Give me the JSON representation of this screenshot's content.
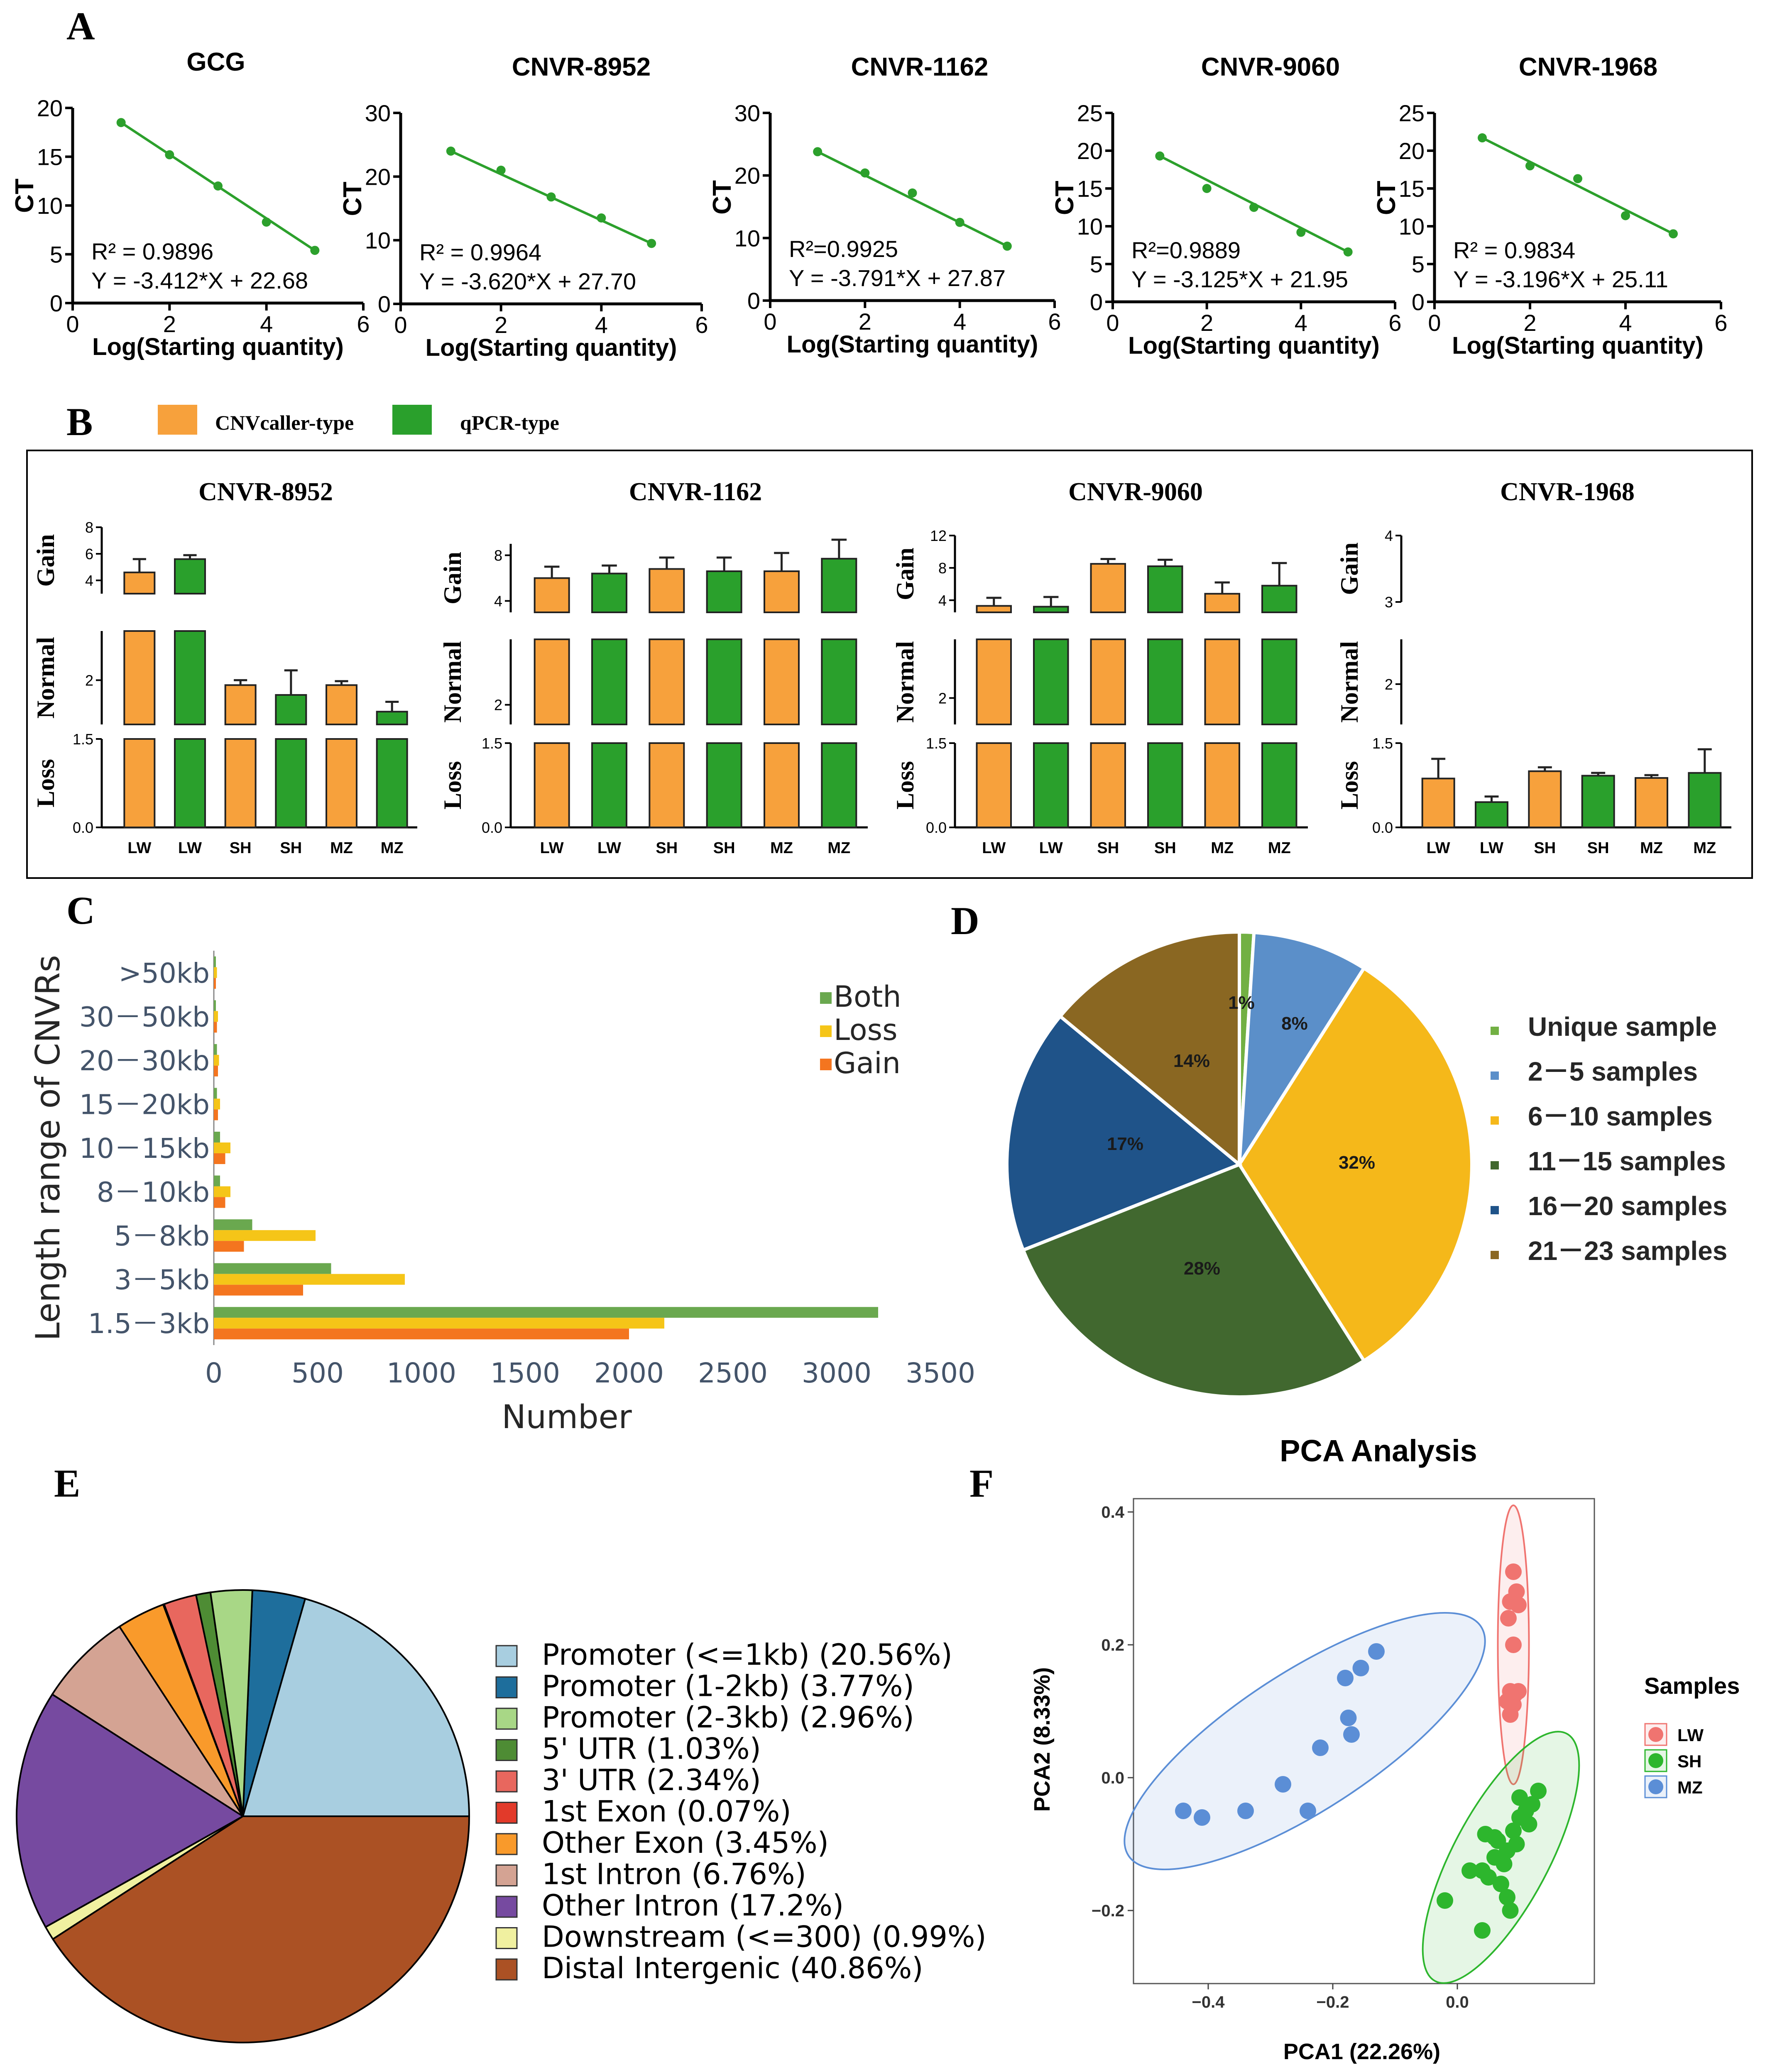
{
  "panel_letters": {
    "A": "A",
    "B": "B",
    "C": "C",
    "D": "D",
    "E": "E",
    "F": "F"
  },
  "colors": {
    "std_line": "#2ca02c",
    "caller": "#f7a13c",
    "qpcr": "#2aa02c",
    "c_both": "#6aa84f",
    "c_loss": "#f5c518",
    "c_gain": "#f4751f",
    "pca_lw": "#f07470",
    "pca_sh": "#2db62d",
    "pca_mz": "#5b8ed6"
  },
  "chart_data": [
    {
      "id": "A",
      "type": "scatter",
      "xlabel": "Log(Starting quantity)",
      "ylabel": "CT",
      "plots": [
        {
          "title": "GCG",
          "ylim": [
            0,
            20
          ],
          "yticks": [
            0,
            5,
            10,
            15,
            20
          ],
          "xlim": [
            0,
            6
          ],
          "xticks": [
            0,
            2,
            4,
            6
          ],
          "x": [
            1,
            2,
            3,
            4,
            5
          ],
          "y": [
            18.5,
            15.2,
            12.0,
            8.3,
            5.4
          ],
          "r2": "R² = 0.9896",
          "eq": "Y = -3.412*X + 22.68"
        },
        {
          "title": "CNVR-8952",
          "ylim": [
            0,
            30
          ],
          "yticks": [
            0,
            10,
            20,
            30
          ],
          "xlim": [
            0,
            6
          ],
          "xticks": [
            0,
            2,
            4,
            6
          ],
          "x": [
            1,
            2,
            3,
            4,
            5
          ],
          "y": [
            24.0,
            21.0,
            16.8,
            13.5,
            9.5
          ],
          "r2": "R² = 0.9964",
          "eq": "Y = -3.620*X + 27.70"
        },
        {
          "title": "CNVR-1162",
          "ylim": [
            0,
            30
          ],
          "yticks": [
            0,
            10,
            20,
            30
          ],
          "xlim": [
            0,
            6
          ],
          "xticks": [
            0,
            2,
            4,
            6
          ],
          "x": [
            1,
            2,
            3,
            4,
            5
          ],
          "y": [
            23.8,
            20.4,
            17.2,
            12.5,
            8.7
          ],
          "r2": "R²=0.9925",
          "eq": "Y = -3.791*X + 27.87"
        },
        {
          "title": "CNVR-9060",
          "ylim": [
            0,
            25
          ],
          "yticks": [
            0,
            5,
            10,
            15,
            20,
            25
          ],
          "xlim": [
            0,
            6
          ],
          "xticks": [
            0,
            2,
            4,
            6
          ],
          "x": [
            1,
            2,
            3,
            4,
            5
          ],
          "y": [
            19.3,
            15.0,
            12.5,
            9.2,
            6.6
          ],
          "r2": "R²=0.9889",
          "eq": "Y = -3.125*X + 21.95"
        },
        {
          "title": "CNVR-1968",
          "ylim": [
            0,
            25
          ],
          "yticks": [
            0,
            5,
            10,
            15,
            20,
            25
          ],
          "xlim": [
            0,
            6
          ],
          "xticks": [
            0,
            2,
            4,
            6
          ],
          "x": [
            1,
            2,
            3,
            4,
            5
          ],
          "y": [
            21.7,
            18.0,
            16.3,
            11.4,
            9.0
          ],
          "r2": "R² = 0.9834",
          "eq": "Y = -3.196*X + 25.11"
        }
      ]
    },
    {
      "id": "B",
      "type": "bar",
      "legend": [
        "CNVcaller-type",
        "qPCR-type"
      ],
      "categories": [
        "LW",
        "LW",
        "SH",
        "SH",
        "MZ",
        "MZ"
      ],
      "bar_colors": [
        "caller",
        "qpcr",
        "caller",
        "qpcr",
        "caller",
        "qpcr"
      ],
      "segment_labels": [
        "Gain",
        "Normal",
        "Loss"
      ],
      "plots": [
        {
          "title": "CNVR-8952",
          "values": [
            4.6,
            5.6,
            1.95,
            1.85,
            1.95,
            1.68
          ],
          "errors": [
            1.0,
            0.3,
            0.05,
            0.25,
            0.04,
            0.1
          ],
          "gain_ticks": [
            4,
            6,
            8
          ],
          "normal_ticks": [
            2
          ],
          "loss_ticks": [
            0.0,
            1.5
          ]
        },
        {
          "title": "CNVR-1162",
          "values": [
            6.0,
            6.4,
            6.8,
            6.6,
            6.6,
            7.7
          ],
          "errors": [
            1.0,
            0.7,
            1.0,
            1.2,
            1.6,
            2.2
          ],
          "gain_ticks": [
            4,
            8
          ],
          "normal_ticks": [
            2
          ],
          "loss_ticks": [
            0.0,
            1.5
          ]
        },
        {
          "title": "CNVR-9060",
          "values": [
            3.3,
            3.2,
            8.5,
            8.2,
            4.8,
            5.8
          ],
          "errors": [
            1.0,
            1.2,
            0.6,
            0.8,
            1.4,
            2.8
          ],
          "gain_ticks": [
            4,
            8,
            12
          ],
          "normal_ticks": [
            2
          ],
          "loss_ticks": [
            0.0,
            1.5
          ]
        },
        {
          "title": "CNVR-1968",
          "values": [
            0.87,
            0.45,
            1.0,
            0.92,
            0.88,
            0.97
          ],
          "errors": [
            0.35,
            0.1,
            0.07,
            0.05,
            0.05,
            0.42
          ],
          "gain_ticks": [
            3,
            4
          ],
          "normal_ticks": [
            2
          ],
          "loss_ticks": [
            0.0,
            1.5
          ]
        }
      ]
    },
    {
      "id": "C",
      "type": "bar",
      "orientation": "horizontal",
      "categories": [
        ">50kb",
        "30－50kb",
        "20－30kb",
        "15－20kb",
        "10－15kb",
        "8－10kb",
        "5－8kb",
        "3－5kb",
        "1.5－3kb"
      ],
      "series": [
        {
          "name": "Both",
          "values": [
            10,
            10,
            15,
            15,
            30,
            30,
            185,
            565,
            3200
          ]
        },
        {
          "name": "Loss",
          "values": [
            15,
            20,
            25,
            30,
            80,
            80,
            490,
            920,
            2170
          ]
        },
        {
          "name": "Gain",
          "values": [
            10,
            15,
            20,
            20,
            55,
            55,
            145,
            430,
            2000
          ]
        }
      ],
      "xlim": [
        0,
        3500
      ],
      "xticks": [
        "0",
        "500",
        "1000",
        "1500",
        "2000",
        "2500",
        "3000",
        "3500"
      ],
      "xlabel": "Number",
      "ylabel": "Length range of CNVRs"
    },
    {
      "id": "D",
      "type": "pie",
      "labels": [
        "Unique sample",
        "2－5 samples",
        "6－10 samples",
        "11－15 samples",
        "16－20 samples",
        "21－23 samples"
      ],
      "values": [
        1,
        8,
        32,
        28,
        17,
        14
      ],
      "pct_labels": [
        "1%",
        "8%",
        "32%",
        "28%",
        "17%",
        "14%"
      ],
      "colors": [
        "#72b043",
        "#5b8fc9",
        "#f5b81a",
        "#41682f",
        "#1f5389",
        "#8a6722"
      ]
    },
    {
      "id": "E",
      "type": "pie",
      "labels": [
        "Promoter (<=1kb) (20.56%)",
        "Promoter (1-2kb) (3.77%)",
        "Promoter (2-3kb) (2.96%)",
        "5' UTR (1.03%)",
        "3' UTR (2.34%)",
        "1st Exon (0.07%)",
        "Other Exon (3.45%)",
        "1st Intron (6.76%)",
        "Other Intron (17.2%)",
        "Downstream (<=300) (0.99%)",
        "Distal Intergenic (40.86%)"
      ],
      "values": [
        20.56,
        3.77,
        2.96,
        1.03,
        2.34,
        0.07,
        3.45,
        6.76,
        17.2,
        0.99,
        40.86
      ],
      "colors": [
        "#a8cee0",
        "#1e6e9c",
        "#a8d786",
        "#4e8c34",
        "#e8675e",
        "#e23a2a",
        "#f99a2b",
        "#d4a393",
        "#764aa0",
        "#f0f0a0",
        "#ab5124"
      ]
    },
    {
      "id": "F",
      "type": "scatter",
      "title": "PCA Analysis",
      "xlabel": "PCA1 (22.26%)",
      "ylabel": "PCA2 (8.33%)",
      "xlim": [
        -0.52,
        0.22
      ],
      "ylim": [
        -0.31,
        0.42
      ],
      "xticks": [
        -0.4,
        -0.2,
        0.0
      ],
      "yticks": [
        -0.2,
        0.0,
        0.2,
        0.4
      ],
      "xtick_labels": [
        "−0.4",
        "−0.2",
        "0.0"
      ],
      "ytick_labels": [
        "−0.2",
        "0.0",
        "0.2",
        "0.4"
      ],
      "legend_title": "Samples",
      "series": [
        {
          "name": "LW",
          "points": [
            [
              0.09,
              0.31
            ],
            [
              0.095,
              0.28
            ],
            [
              0.085,
              0.265
            ],
            [
              0.098,
              0.26
            ],
            [
              0.082,
              0.24
            ],
            [
              0.09,
              0.2
            ],
            [
              0.085,
              0.13
            ],
            [
              0.092,
              0.125
            ],
            [
              0.098,
              0.13
            ],
            [
              0.08,
              0.115
            ],
            [
              0.09,
              0.11
            ],
            [
              0.085,
              0.095
            ]
          ],
          "ellipse": {
            "cx": 0.09,
            "cy": 0.2,
            "rx": 0.025,
            "ry": 0.21,
            "angle": 0
          }
        },
        {
          "name": "SH",
          "points": [
            [
              -0.02,
              -0.185
            ],
            [
              0.02,
              -0.14
            ],
            [
              0.04,
              -0.14
            ],
            [
              0.05,
              -0.15
            ],
            [
              0.06,
              -0.12
            ],
            [
              0.08,
              -0.11
            ],
            [
              0.09,
              -0.08
            ],
            [
              0.1,
              -0.06
            ],
            [
              0.11,
              -0.05
            ],
            [
              0.12,
              -0.04
            ],
            [
              0.13,
              -0.02
            ],
            [
              0.115,
              -0.07
            ],
            [
              0.095,
              -0.1
            ],
            [
              0.075,
              -0.13
            ],
            [
              0.06,
              -0.09
            ],
            [
              0.065,
              -0.095
            ],
            [
              0.045,
              -0.085
            ],
            [
              0.07,
              -0.16
            ],
            [
              0.085,
              -0.2
            ],
            [
              0.08,
              -0.18
            ],
            [
              0.04,
              -0.23
            ],
            [
              0.1,
              -0.03
            ]
          ],
          "ellipse": {
            "cx": 0.07,
            "cy": -0.12,
            "rx": 0.18,
            "ry": 0.045,
            "angle": -62
          }
        },
        {
          "name": "MZ",
          "points": [
            [
              -0.13,
              0.19
            ],
            [
              -0.155,
              0.165
            ],
            [
              -0.18,
              0.15
            ],
            [
              -0.175,
              0.09
            ],
            [
              -0.17,
              0.065
            ],
            [
              -0.22,
              0.045
            ],
            [
              -0.28,
              -0.01
            ],
            [
              -0.24,
              -0.05
            ],
            [
              -0.34,
              -0.05
            ],
            [
              -0.41,
              -0.06
            ],
            [
              -0.44,
              -0.05
            ]
          ],
          "ellipse": {
            "cx": -0.245,
            "cy": 0.055,
            "rx": 0.27,
            "ry": 0.065,
            "angle": -33
          }
        }
      ]
    }
  ]
}
